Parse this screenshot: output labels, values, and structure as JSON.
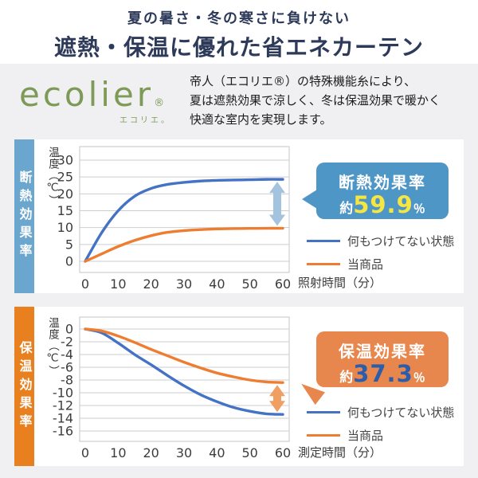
{
  "header": {
    "subtitle": "夏の暑さ・冬の寒さに負けない",
    "title": "遮熱・保温に優れた省エネカーテン"
  },
  "brand": {
    "logo": "ecolier",
    "reg_mark": "®",
    "logo_kana": "エコリエ。",
    "description_lines": [
      "帝人（エコリエ®）の特殊機能糸により、",
      "夏は遮熱効果で涼しく、冬は保温効果で暖かく",
      "快適な室内を実現します。"
    ]
  },
  "colors": {
    "header_navy": "#2d3a5a",
    "logo_green": "#7d9a56",
    "insulation_bar": "#6ba6ce",
    "insulation_callout": "#4e96c6",
    "retention_bar": "#e8801f",
    "retention_callout": "#e8874d",
    "line_blue": "#4472c4",
    "line_orange": "#ed7d31",
    "value_yellow": "#f7e541",
    "value_blue": "#2b5dad",
    "page_bg": "#f0f0f2"
  },
  "sections": [
    {
      "side_label": "断熱効果率",
      "ylabel": "温度（℃）",
      "xlabel": "照射時間（分）",
      "callout": {
        "title": "断熱効果率",
        "prefix": "約",
        "value": "59.9",
        "unit": "％"
      }
    },
    {
      "side_label": "保温効果率",
      "ylabel": "温度（℃）",
      "xlabel": "測定時間（分）",
      "callout": {
        "title": "保温効果率",
        "prefix": "約",
        "value": "37.3",
        "unit": "％"
      }
    }
  ],
  "chart_data": [
    {
      "type": "line",
      "title": "断熱効果率",
      "xlabel": "照射時間（分）",
      "ylabel": "温度（℃）",
      "x": [
        0,
        5,
        10,
        15,
        20,
        25,
        30,
        35,
        40,
        45,
        50,
        55,
        60
      ],
      "xticks": [
        0,
        10,
        20,
        30,
        40,
        50,
        60
      ],
      "yticks": [
        30,
        25,
        20,
        15,
        10,
        5,
        0
      ],
      "ylim": [
        0,
        30
      ],
      "grid": true,
      "legend_position": "right",
      "series": [
        {
          "name": "何もつけてない状態",
          "color": "#4472c4",
          "values": [
            0,
            8.5,
            15.0,
            19.3,
            21.6,
            22.8,
            23.4,
            23.8,
            24.0,
            24.1,
            24.2,
            24.3,
            24.3
          ]
        },
        {
          "name": "当商品",
          "color": "#ed7d31",
          "values": [
            0,
            2.2,
            4.4,
            6.2,
            7.6,
            8.6,
            9.1,
            9.4,
            9.6,
            9.7,
            9.75,
            9.8,
            9.8
          ]
        }
      ],
      "annotation": {
        "label": "断熱効果率 約59.9％",
        "arrow_color": "#a4c3de"
      }
    },
    {
      "type": "line",
      "title": "保温効果率",
      "xlabel": "測定時間（分）",
      "ylabel": "温度（℃）",
      "x": [
        0,
        5,
        10,
        15,
        20,
        25,
        30,
        35,
        40,
        45,
        50,
        55,
        60
      ],
      "xticks": [
        0,
        10,
        20,
        30,
        40,
        50,
        60
      ],
      "yticks": [
        0,
        -2,
        -4,
        -6,
        -8,
        -10,
        -12,
        -14,
        -16
      ],
      "ylim": [
        -16,
        0
      ],
      "grid": true,
      "legend_position": "right",
      "series": [
        {
          "name": "何もつけてない状態",
          "color": "#4472c4",
          "values": [
            0,
            -0.6,
            -2.2,
            -4.0,
            -5.6,
            -7.3,
            -8.9,
            -10.3,
            -11.4,
            -12.3,
            -12.9,
            -13.3,
            -13.4
          ]
        },
        {
          "name": "当商品",
          "color": "#ed7d31",
          "values": [
            0,
            -0.3,
            -1.1,
            -2.1,
            -3.2,
            -4.2,
            -5.2,
            -6.1,
            -6.9,
            -7.5,
            -8.0,
            -8.3,
            -8.4
          ]
        }
      ],
      "annotation": {
        "label": "保温効果率 約37.3％",
        "arrow_color": "#f09f63"
      }
    }
  ]
}
